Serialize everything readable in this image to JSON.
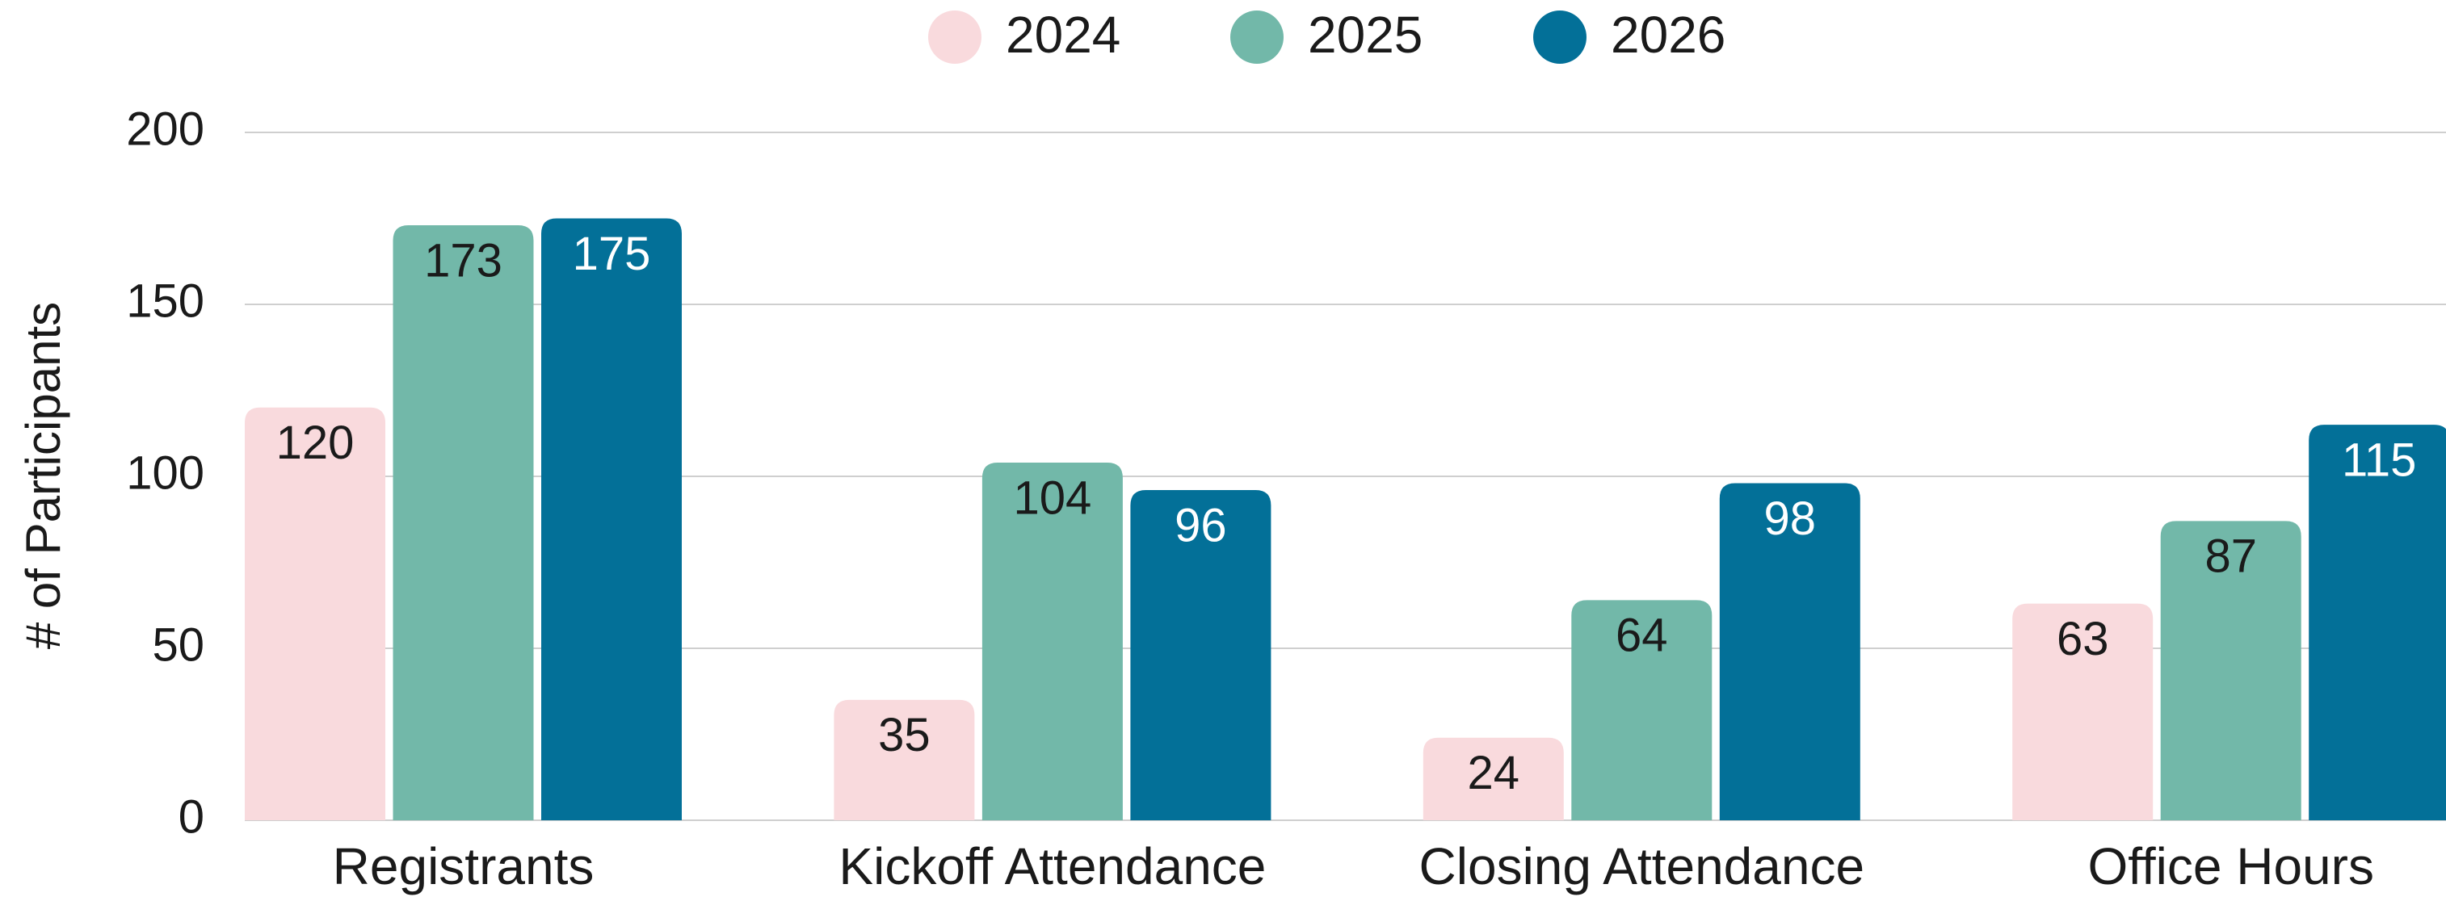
{
  "chart_data": {
    "type": "bar",
    "ylabel": "# of Participants",
    "categories": [
      "Registrants",
      "Kickoff Attendance",
      "Closing Attendance",
      "Office Hours"
    ],
    "series": [
      {
        "name": "2024",
        "color": "#f9dadd",
        "values": [
          120,
          35,
          24,
          63
        ]
      },
      {
        "name": "2025",
        "color": "#72b8a9",
        "values": [
          173,
          104,
          64,
          87
        ]
      },
      {
        "name": "2026",
        "color": "#037098",
        "values": [
          175,
          96,
          98,
          115
        ]
      }
    ],
    "ylim": [
      0,
      200
    ],
    "yticks": [
      0,
      50,
      100,
      150,
      200
    ],
    "grid": true,
    "legend": "top"
  }
}
